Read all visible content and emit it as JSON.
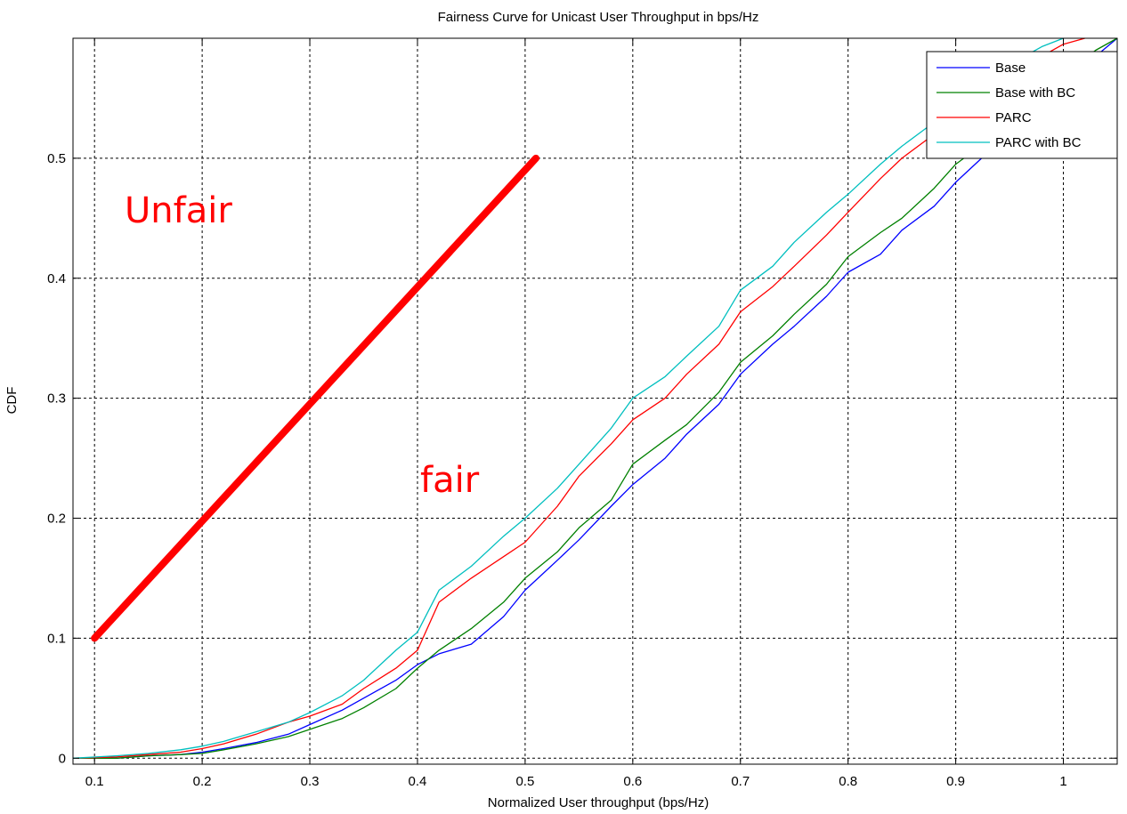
{
  "chart_data": {
    "type": "line",
    "title": "Fairness Curve for Unicast User Throughput in bps/Hz",
    "xlabel": "Normalized User throughput (bps/Hz)",
    "ylabel": "CDF",
    "xlim": [
      0.08,
      1.05
    ],
    "ylim": [
      -0.005,
      0.6
    ],
    "x_ticks": [
      0.1,
      0.2,
      0.3,
      0.4,
      0.5,
      0.6,
      0.7,
      0.8,
      0.9,
      1
    ],
    "x_tick_labels": [
      "0.1",
      "0.2",
      "0.3",
      "0.4",
      "0.5",
      "0.6",
      "0.7",
      "0.8",
      "0.9",
      "1"
    ],
    "y_ticks": [
      0,
      0.1,
      0.2,
      0.3,
      0.4,
      0.5
    ],
    "y_tick_labels": [
      "0",
      "0.1",
      "0.2",
      "0.3",
      "0.4",
      "0.5"
    ],
    "grid": true,
    "grid_style": "dashed",
    "legend_position": "top-right",
    "series": [
      {
        "name": "Base",
        "color": "#0000ff",
        "x": [
          0.08,
          0.12,
          0.15,
          0.18,
          0.2,
          0.22,
          0.25,
          0.28,
          0.3,
          0.33,
          0.35,
          0.38,
          0.4,
          0.42,
          0.45,
          0.48,
          0.5,
          0.53,
          0.55,
          0.58,
          0.6,
          0.63,
          0.65,
          0.68,
          0.7,
          0.73,
          0.75,
          0.78,
          0.8,
          0.83,
          0.85,
          0.88,
          0.9,
          0.93,
          0.95,
          0.98,
          1.0,
          1.03,
          1.05
        ],
        "y": [
          0.0,
          0.0,
          0.002,
          0.003,
          0.005,
          0.008,
          0.013,
          0.02,
          0.028,
          0.04,
          0.05,
          0.065,
          0.078,
          0.087,
          0.095,
          0.118,
          0.14,
          0.165,
          0.182,
          0.21,
          0.228,
          0.25,
          0.27,
          0.295,
          0.32,
          0.345,
          0.36,
          0.385,
          0.405,
          0.42,
          0.44,
          0.46,
          0.48,
          0.505,
          0.52,
          0.545,
          0.56,
          0.585,
          0.6
        ]
      },
      {
        "name": "Base with BC",
        "color": "#008000",
        "x": [
          0.08,
          0.12,
          0.15,
          0.18,
          0.2,
          0.22,
          0.25,
          0.28,
          0.3,
          0.33,
          0.35,
          0.38,
          0.4,
          0.42,
          0.45,
          0.48,
          0.5,
          0.53,
          0.55,
          0.58,
          0.6,
          0.63,
          0.65,
          0.68,
          0.7,
          0.73,
          0.75,
          0.78,
          0.8,
          0.83,
          0.85,
          0.88,
          0.9,
          0.93,
          0.95,
          0.98,
          1.0,
          1.03,
          1.05
        ],
        "y": [
          0.0,
          0.0,
          0.002,
          0.003,
          0.004,
          0.007,
          0.012,
          0.018,
          0.024,
          0.033,
          0.042,
          0.058,
          0.075,
          0.09,
          0.108,
          0.13,
          0.15,
          0.172,
          0.192,
          0.215,
          0.245,
          0.265,
          0.278,
          0.305,
          0.33,
          0.352,
          0.37,
          0.395,
          0.418,
          0.438,
          0.45,
          0.475,
          0.495,
          0.515,
          0.53,
          0.555,
          0.57,
          0.59,
          0.6
        ]
      },
      {
        "name": "PARC",
        "color": "#ff0000",
        "x": [
          0.08,
          0.12,
          0.15,
          0.18,
          0.2,
          0.22,
          0.25,
          0.28,
          0.3,
          0.33,
          0.35,
          0.38,
          0.4,
          0.42,
          0.45,
          0.48,
          0.5,
          0.53,
          0.55,
          0.58,
          0.6,
          0.63,
          0.65,
          0.68,
          0.7,
          0.73,
          0.75,
          0.78,
          0.8,
          0.83,
          0.85,
          0.88,
          0.9,
          0.93,
          0.95,
          0.98,
          1.0,
          1.02
        ],
        "y": [
          0.0,
          0.001,
          0.003,
          0.005,
          0.008,
          0.012,
          0.02,
          0.03,
          0.035,
          0.045,
          0.058,
          0.075,
          0.09,
          0.13,
          0.15,
          0.168,
          0.18,
          0.21,
          0.235,
          0.262,
          0.282,
          0.3,
          0.32,
          0.345,
          0.372,
          0.393,
          0.41,
          0.436,
          0.455,
          0.483,
          0.5,
          0.52,
          0.535,
          0.555,
          0.57,
          0.585,
          0.595,
          0.6
        ]
      },
      {
        "name": "PARC with BC",
        "color": "#00bfbf",
        "x": [
          0.08,
          0.12,
          0.15,
          0.18,
          0.2,
          0.22,
          0.25,
          0.28,
          0.3,
          0.33,
          0.35,
          0.38,
          0.4,
          0.42,
          0.45,
          0.48,
          0.5,
          0.53,
          0.55,
          0.58,
          0.6,
          0.63,
          0.65,
          0.68,
          0.7,
          0.73,
          0.75,
          0.78,
          0.8,
          0.83,
          0.85,
          0.88,
          0.9,
          0.93,
          0.95,
          0.98,
          1.0
        ],
        "y": [
          0.0,
          0.002,
          0.004,
          0.007,
          0.01,
          0.014,
          0.022,
          0.03,
          0.038,
          0.052,
          0.065,
          0.09,
          0.105,
          0.14,
          0.16,
          0.185,
          0.2,
          0.225,
          0.245,
          0.275,
          0.3,
          0.318,
          0.335,
          0.36,
          0.39,
          0.41,
          0.43,
          0.455,
          0.47,
          0.495,
          0.51,
          0.53,
          0.545,
          0.565,
          0.578,
          0.593,
          0.6
        ]
      }
    ],
    "annotations": {
      "unfair_text": "Unfair",
      "fair_text": "fair",
      "color": "#ff0000",
      "fairness_line": {
        "x": [
          0.1,
          0.51
        ],
        "y": [
          0.1,
          0.5
        ]
      }
    }
  }
}
